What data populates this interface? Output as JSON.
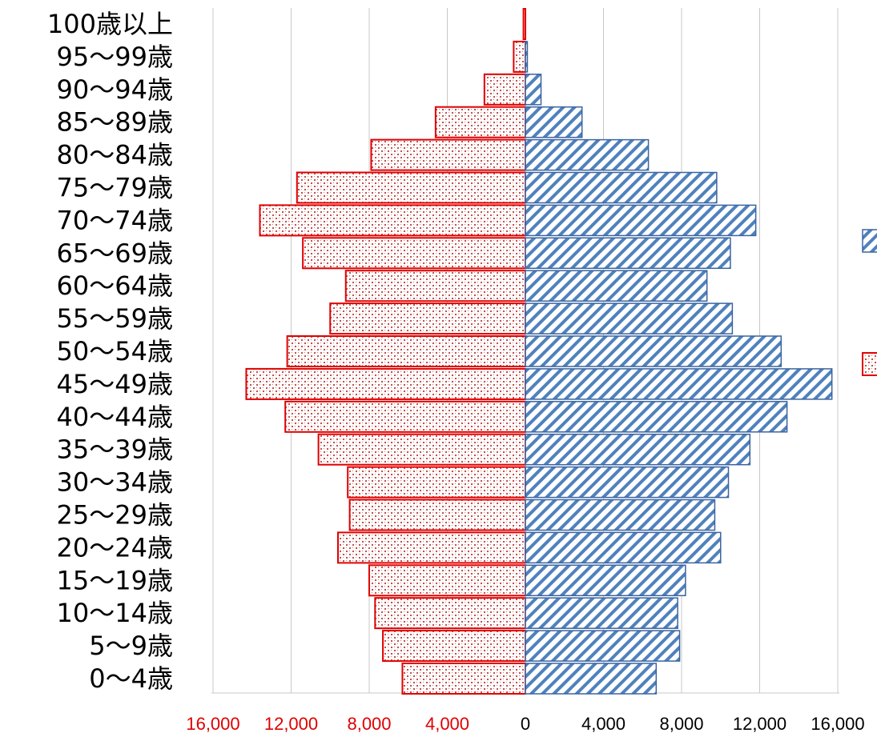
{
  "chart_data": {
    "type": "bar",
    "orientation": "horizontal-diverging",
    "categories": [
      "100歳以上",
      "95〜99歳",
      "90〜94歳",
      "85〜89歳",
      "80〜84歳",
      "75〜79歳",
      "70〜74歳",
      "65〜69歳",
      "60〜64歳",
      "55〜59歳",
      "50〜54歳",
      "45〜49歳",
      "40〜44歳",
      "35〜39歳",
      "30〜34歳",
      "25〜29歳",
      "20〜24歳",
      "15〜19歳",
      "10〜14歳",
      "5〜9歳",
      "0〜4歳"
    ],
    "series": [
      {
        "side": "left",
        "color": "#e00000",
        "pattern": "red-dots",
        "values": [
          100,
          600,
          2100,
          4600,
          7900,
          11700,
          13600,
          11400,
          9200,
          10000,
          12200,
          14300,
          12300,
          10600,
          9100,
          9000,
          9600,
          8000,
          7700,
          7300,
          6300
        ]
      },
      {
        "side": "right",
        "color": "#4f81bd",
        "pattern": "blue-diagonal",
        "values": [
          0,
          100,
          800,
          2900,
          6300,
          9800,
          11800,
          10500,
          9300,
          10600,
          13100,
          15700,
          13400,
          11500,
          10400,
          9700,
          10000,
          8200,
          7800,
          7900,
          6700
        ]
      }
    ],
    "xlim": [
      -16000,
      16000
    ],
    "x_ticks_left": [
      "16,000",
      "12,000",
      "8,000",
      "4,000"
    ],
    "x_tick_zero": "0",
    "x_ticks_right": [
      "4,000",
      "8,000",
      "12,000",
      "16,000"
    ],
    "left_tick_color": "#e00000",
    "right_tick_color": "#000000",
    "grid": true,
    "legend": "right (cut off)"
  }
}
